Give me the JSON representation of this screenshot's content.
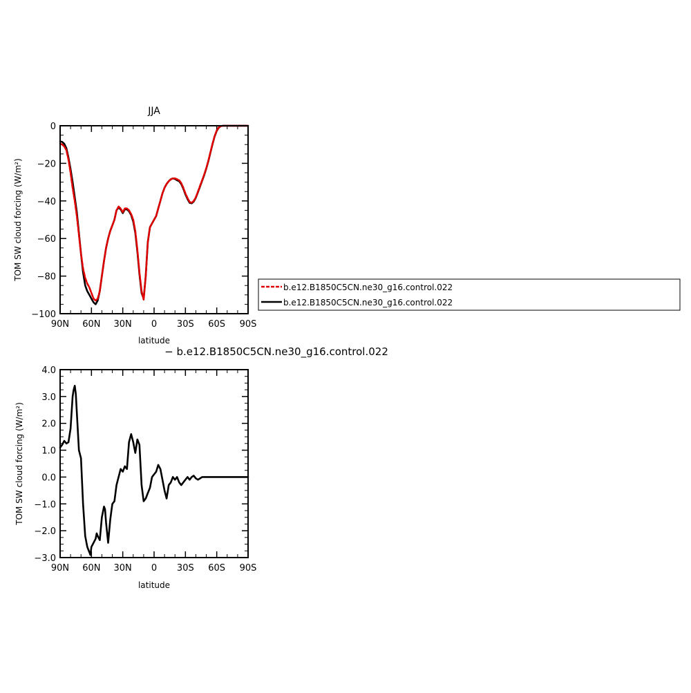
{
  "chart_data": [
    {
      "type": "line",
      "title": "JJA",
      "xlabel": "latitude",
      "ylabel": "TOM SW cloud forcing (W/m²)",
      "xlim": [
        90,
        -90
      ],
      "ylim": [
        -100,
        0
      ],
      "xticks": [
        90,
        60,
        30,
        0,
        -30,
        -60,
        -90
      ],
      "xticklabels": [
        "90N",
        "60N",
        "30N",
        "0",
        "30S",
        "60S",
        "90S"
      ],
      "yticks": [
        0,
        -20,
        -40,
        -60,
        -80,
        -100
      ],
      "yticklabels": [
        "0",
        "−20",
        "−40",
        "−60",
        "−80",
        "−100"
      ],
      "legend_placement": "right",
      "series": [
        {
          "name": "b.e12.B1850C5CN.ne30_g16.control.022",
          "color": "#e00000",
          "style": "dashed",
          "x": [
            90,
            88,
            86,
            84,
            82,
            80,
            78,
            76,
            74,
            72,
            70,
            68,
            66,
            64,
            62,
            60,
            58,
            56,
            54,
            52,
            50,
            48,
            46,
            44,
            42,
            40,
            38,
            36,
            34,
            32,
            30,
            28,
            26,
            24,
            22,
            20,
            18,
            16,
            14,
            12,
            10,
            8,
            6,
            4,
            2,
            0,
            -2,
            -4,
            -6,
            -8,
            -10,
            -12,
            -14,
            -16,
            -18,
            -20,
            -22,
            -24,
            -26,
            -28,
            -30,
            -32,
            -34,
            -36,
            -38,
            -40,
            -42,
            -44,
            -46,
            -48,
            -50,
            -52,
            -54,
            -56,
            -58,
            -60,
            -62,
            -64,
            -66,
            -68,
            -70,
            -75,
            -80,
            -85,
            -90
          ],
          "y": [
            -9.5,
            -10,
            -11,
            -13,
            -18,
            -25,
            -33,
            -40,
            -48,
            -58,
            -68,
            -76,
            -81,
            -84,
            -86,
            -89,
            -92,
            -93,
            -92,
            -88,
            -80,
            -72,
            -65,
            -60,
            -56,
            -53,
            -50,
            -45,
            -43,
            -44,
            -46,
            -44,
            -44,
            -45,
            -47,
            -50,
            -56,
            -66,
            -78,
            -88,
            -92.5,
            -80,
            -62,
            -54,
            -52,
            -50,
            -48,
            -44,
            -40,
            -36,
            -33,
            -31,
            -29.5,
            -28.5,
            -28,
            -28,
            -28.5,
            -29,
            -30.5,
            -33,
            -36,
            -38.5,
            -40.5,
            -41,
            -40,
            -38,
            -35,
            -32,
            -29,
            -26,
            -22.5,
            -18.5,
            -14,
            -9.5,
            -5.5,
            -2.5,
            -0.8,
            -0.2,
            0,
            0,
            0,
            0,
            0,
            0,
            0
          ]
        },
        {
          "name": "b.e12.B1850C5CN.ne30_g16.control.022",
          "color": "#000000",
          "style": "solid",
          "x": [
            90,
            88,
            86,
            84,
            82,
            80,
            78,
            76,
            74,
            72,
            70,
            68,
            66,
            64,
            62,
            60,
            58,
            56,
            54,
            52,
            50,
            48,
            46,
            44,
            42,
            40,
            38,
            36,
            34,
            32,
            30,
            28,
            26,
            24,
            22,
            20,
            18,
            16,
            14,
            12,
            10,
            8,
            6,
            4,
            2,
            0,
            -2,
            -4,
            -6,
            -8,
            -10,
            -12,
            -14,
            -16,
            -18,
            -20,
            -22,
            -24,
            -26,
            -28,
            -30,
            -32,
            -34,
            -36,
            -38,
            -40,
            -42,
            -44,
            -46,
            -48,
            -50,
            -52,
            -54,
            -56,
            -58,
            -60,
            -62,
            -64,
            -66,
            -68,
            -70,
            -75,
            -80,
            -85,
            -90
          ],
          "y": [
            -8.3,
            -8.6,
            -9.6,
            -12,
            -17,
            -23,
            -30,
            -38,
            -46,
            -57,
            -68,
            -78,
            -85,
            -88,
            -90,
            -92,
            -94,
            -95,
            -93,
            -88,
            -80,
            -72,
            -65,
            -60,
            -56,
            -53,
            -50,
            -45,
            -43.5,
            -44.5,
            -46.5,
            -44.5,
            -44.5,
            -45.5,
            -47.5,
            -51,
            -57,
            -67,
            -79,
            -89,
            -92,
            -80,
            -62,
            -54,
            -52,
            -50,
            -48,
            -44,
            -40,
            -36,
            -33,
            -31,
            -29.5,
            -28.5,
            -28,
            -28.3,
            -29,
            -29.5,
            -31,
            -33.5,
            -36.5,
            -39,
            -41,
            -41.3,
            -40.3,
            -38.3,
            -35.3,
            -32.3,
            -29.3,
            -26.3,
            -22.7,
            -18.7,
            -14.2,
            -9.7,
            -5.7,
            -2.7,
            -1,
            -0.2,
            0,
            0,
            0,
            0,
            0,
            0,
            0
          ]
        }
      ]
    },
    {
      "type": "line",
      "title": "− b.e12.B1850C5CN.ne30_g16.control.022",
      "xlabel": "latitude",
      "ylabel": "TOM SW cloud forcing (W/m²)",
      "xlim": [
        90,
        -90
      ],
      "ylim": [
        -3,
        4
      ],
      "xticks": [
        90,
        60,
        30,
        0,
        -30,
        -60,
        -90
      ],
      "xticklabels": [
        "90N",
        "60N",
        "30N",
        "0",
        "30S",
        "60S",
        "90S"
      ],
      "yticks": [
        4,
        3,
        2,
        1,
        0,
        -1,
        -2,
        -3
      ],
      "yticklabels": [
        "4.0",
        "3.0",
        "2.0",
        "1.0",
        "0.0",
        "−1.0",
        "−2.0",
        "−3.0"
      ],
      "series": [
        {
          "color": "#000000",
          "style": "solid",
          "x": [
            90,
            88,
            86,
            84,
            82,
            80,
            79,
            78,
            77,
            76,
            75,
            74,
            72,
            70,
            68,
            66,
            64,
            62,
            61,
            60,
            58,
            56,
            55,
            54,
            52,
            50,
            48,
            47,
            46,
            44,
            42,
            41,
            40,
            38,
            36,
            34,
            32,
            30,
            28,
            26,
            24,
            22,
            20,
            18,
            16,
            14,
            12,
            10,
            8,
            6,
            4,
            2,
            0,
            -2,
            -4,
            -6,
            -8,
            -10,
            -12,
            -14,
            -16,
            -18,
            -20,
            -22,
            -24,
            -26,
            -28,
            -30,
            -32,
            -34,
            -36,
            -38,
            -40,
            -42,
            -44,
            -46,
            -48,
            -50,
            -52,
            -54,
            -56,
            -58,
            -60,
            -62,
            -64,
            -66,
            -68,
            -70,
            -75,
            -80,
            -85,
            -90
          ],
          "y": [
            1.1,
            1.2,
            1.35,
            1.25,
            1.3,
            1.8,
            2.4,
            3.0,
            3.25,
            3.4,
            3.1,
            2.4,
            1.0,
            0.7,
            -1.0,
            -2.2,
            -2.6,
            -2.8,
            -2.9,
            -2.6,
            -2.45,
            -2.3,
            -2.1,
            -2.2,
            -2.35,
            -1.5,
            -1.1,
            -1.2,
            -1.7,
            -2.45,
            -1.6,
            -1.3,
            -1.0,
            -0.9,
            -0.3,
            0.0,
            0.3,
            0.2,
            0.4,
            0.3,
            1.3,
            1.6,
            1.3,
            0.9,
            1.4,
            1.2,
            -0.3,
            -0.9,
            -0.8,
            -0.6,
            -0.4,
            0.0,
            0.1,
            0.2,
            0.45,
            0.3,
            -0.1,
            -0.5,
            -0.8,
            -0.3,
            -0.2,
            0.0,
            -0.1,
            0.0,
            -0.2,
            -0.3,
            -0.2,
            -0.1,
            0.0,
            -0.1,
            0.0,
            0.05,
            -0.05,
            -0.1,
            -0.05,
            0.0,
            0.0,
            0.0,
            0.0,
            0.0,
            0.0,
            0.0,
            0.0,
            0.0,
            0.0,
            0.0,
            0.0,
            0.0,
            0.0,
            0.0,
            0.0,
            0.0
          ]
        }
      ]
    }
  ]
}
